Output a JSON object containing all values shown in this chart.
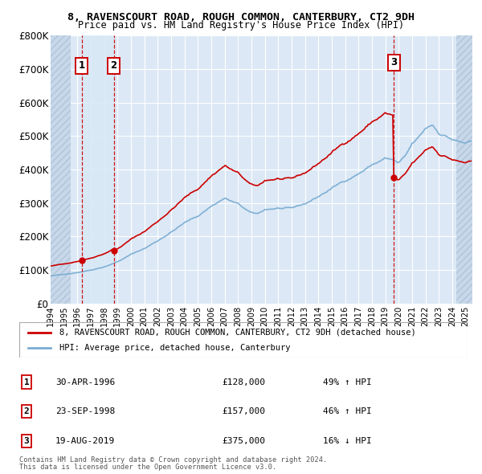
{
  "title": "8, RAVENSCOURT ROAD, ROUGH COMMON, CANTERBURY, CT2 9DH",
  "subtitle": "Price paid vs. HM Land Registry's House Price Index (HPI)",
  "ylim": [
    0,
    800000
  ],
  "xlim": [
    1994.0,
    2025.5
  ],
  "yticks": [
    0,
    100000,
    200000,
    300000,
    400000,
    500000,
    600000,
    700000,
    800000
  ],
  "ytick_labels": [
    "£0",
    "£100K",
    "£200K",
    "£300K",
    "£400K",
    "£500K",
    "£600K",
    "£700K",
    "£800K"
  ],
  "xticks": [
    1994,
    1995,
    1996,
    1997,
    1998,
    1999,
    2000,
    2001,
    2002,
    2003,
    2004,
    2005,
    2006,
    2007,
    2008,
    2009,
    2010,
    2011,
    2012,
    2013,
    2014,
    2015,
    2016,
    2017,
    2018,
    2019,
    2020,
    2021,
    2022,
    2023,
    2024,
    2025
  ],
  "sale1_year": 1996.33,
  "sale1_price": 128000,
  "sale2_year": 1998.72,
  "sale2_price": 157000,
  "sale3_year": 2019.63,
  "sale3_price": 375000,
  "property_color": "#cc0000",
  "hpi_color": "#7aadd4",
  "legend_property": "8, RAVENSCOURT ROAD, ROUGH COMMON, CANTERBURY, CT2 9DH (detached house)",
  "legend_hpi": "HPI: Average price, detached house, Canterbury",
  "footer1": "Contains HM Land Registry data © Crown copyright and database right 2024.",
  "footer2": "This data is licensed under the Open Government Licence v3.0.",
  "table": [
    {
      "num": "1",
      "date": "30-APR-1996",
      "price": "£128,000",
      "hpi": "49% ↑ HPI"
    },
    {
      "num": "2",
      "date": "23-SEP-1998",
      "price": "£157,000",
      "hpi": "46% ↑ HPI"
    },
    {
      "num": "3",
      "date": "19-AUG-2019",
      "price": "£375,000",
      "hpi": "16% ↓ HPI"
    }
  ],
  "background_color": "#ffffff",
  "plot_bg_color": "#dce8f5",
  "grid_color": "#ffffff",
  "hatch_bg": "#c8d8ea",
  "highlight_bg": "#d0e0f0"
}
